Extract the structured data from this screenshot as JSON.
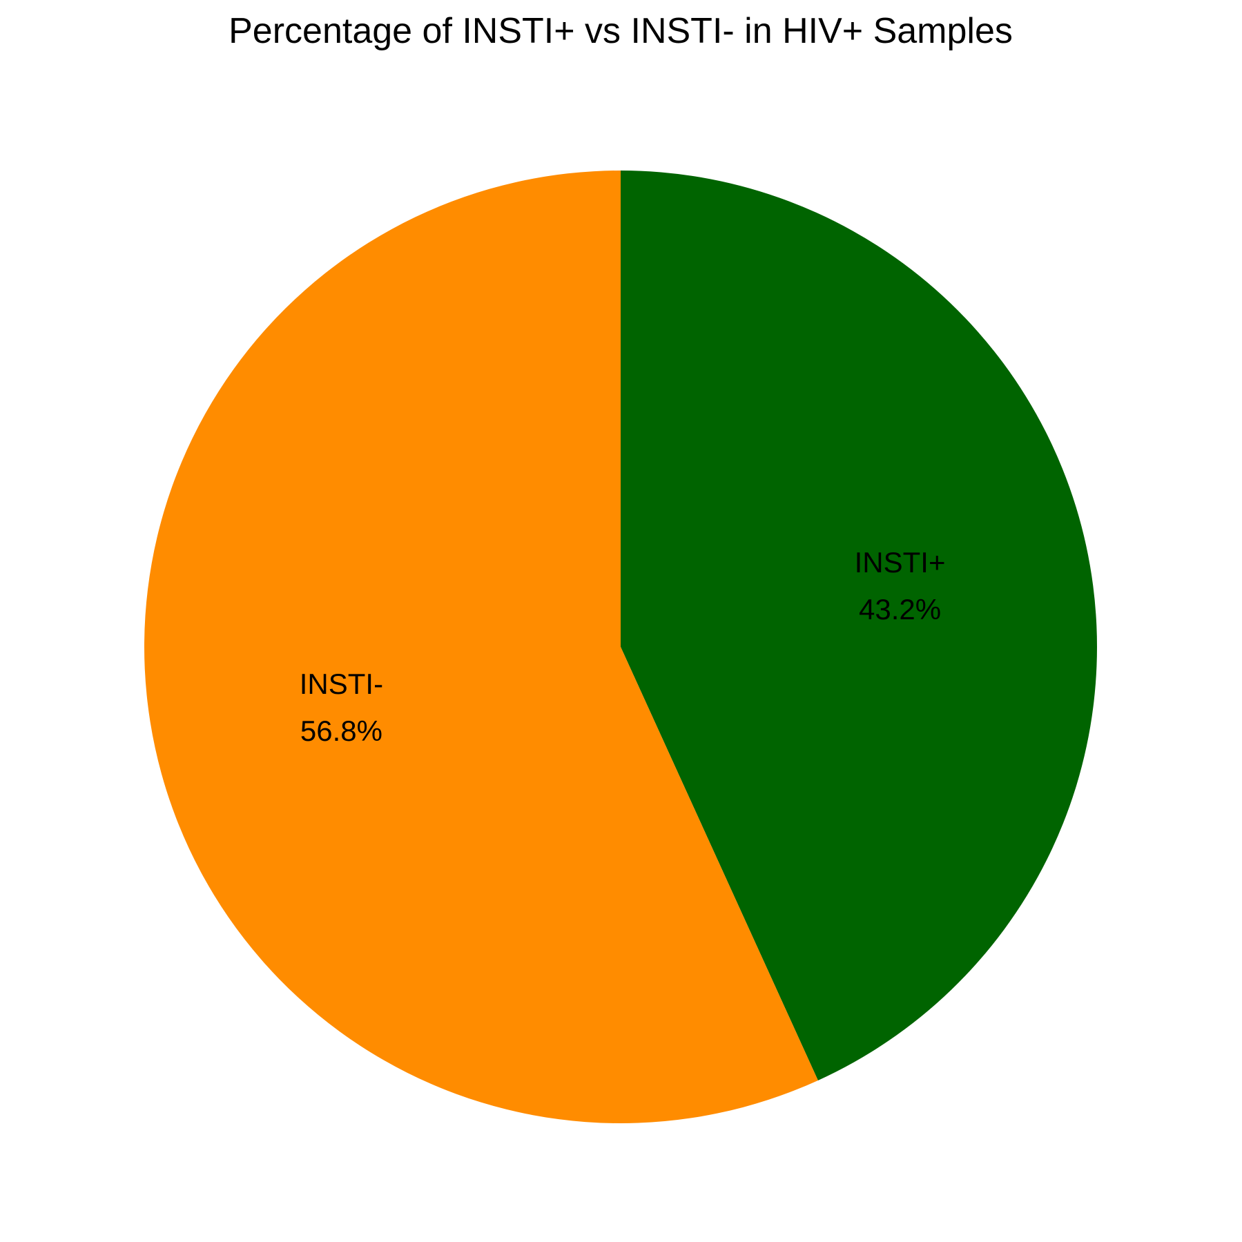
{
  "chart_data": {
    "type": "pie",
    "title": "Percentage of INSTI+ vs INSTI- in HIV+ Samples",
    "start_angle_deg": 90,
    "direction": "clockwise",
    "slices": [
      {
        "label": "INSTI+",
        "value": 43.2,
        "value_text": "43.2%",
        "color": "#006400"
      },
      {
        "label": "INSTI-",
        "value": 56.8,
        "value_text": "56.8%",
        "color": "#FF8C00"
      }
    ]
  }
}
